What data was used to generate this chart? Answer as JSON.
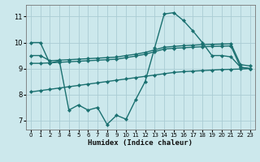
{
  "xlabel": "Humidex (Indice chaleur)",
  "background_color": "#cce8ec",
  "grid_color": "#aaccd4",
  "line_color": "#1a7070",
  "xlim": [
    -0.5,
    23.5
  ],
  "ylim": [
    6.65,
    11.45
  ],
  "xticks": [
    0,
    1,
    2,
    3,
    4,
    5,
    6,
    7,
    8,
    9,
    10,
    11,
    12,
    13,
    14,
    15,
    16,
    17,
    18,
    19,
    20,
    21,
    22,
    23
  ],
  "yticks": [
    7,
    8,
    9,
    10,
    11
  ],
  "lines": [
    {
      "x": [
        0,
        1,
        2,
        3,
        4,
        5,
        6,
        7,
        8,
        9,
        10,
        11,
        12,
        13,
        14,
        15,
        16,
        17,
        18,
        19,
        20,
        21,
        22,
        23
      ],
      "y": [
        10.0,
        10.0,
        9.2,
        9.3,
        7.4,
        7.6,
        7.4,
        7.5,
        6.85,
        7.2,
        7.05,
        7.8,
        8.5,
        9.8,
        11.1,
        11.15,
        10.85,
        10.45,
        10.0,
        9.5,
        9.5,
        9.45,
        9.05,
        9.0
      ],
      "lw": 1.0
    },
    {
      "x": [
        0,
        1,
        2,
        3,
        4,
        5,
        6,
        7,
        8,
        9,
        10,
        11,
        12,
        13,
        14,
        15,
        16,
        17,
        18,
        19,
        20,
        21,
        22,
        23
      ],
      "y": [
        9.5,
        9.5,
        9.3,
        9.32,
        9.34,
        9.36,
        9.38,
        9.4,
        9.42,
        9.44,
        9.5,
        9.55,
        9.62,
        9.72,
        9.82,
        9.85,
        9.88,
        9.9,
        9.92,
        9.93,
        9.94,
        9.95,
        9.15,
        9.1
      ],
      "lw": 1.0
    },
    {
      "x": [
        0,
        1,
        2,
        3,
        4,
        5,
        6,
        7,
        8,
        9,
        10,
        11,
        12,
        13,
        14,
        15,
        16,
        17,
        18,
        19,
        20,
        21,
        22,
        23
      ],
      "y": [
        9.2,
        9.2,
        9.22,
        9.24,
        9.26,
        9.28,
        9.3,
        9.32,
        9.34,
        9.36,
        9.42,
        9.48,
        9.55,
        9.65,
        9.75,
        9.78,
        9.8,
        9.82,
        9.84,
        9.85,
        9.86,
        9.87,
        9.05,
        9.0
      ],
      "lw": 1.0
    },
    {
      "x": [
        0,
        1,
        2,
        3,
        4,
        5,
        6,
        7,
        8,
        9,
        10,
        11,
        12,
        13,
        14,
        15,
        16,
        17,
        18,
        19,
        20,
        21,
        22,
        23
      ],
      "y": [
        8.1,
        8.15,
        8.2,
        8.25,
        8.3,
        8.35,
        8.4,
        8.45,
        8.5,
        8.55,
        8.6,
        8.65,
        8.7,
        8.75,
        8.8,
        8.85,
        8.88,
        8.9,
        8.92,
        8.94,
        8.96,
        8.97,
        8.98,
        9.0
      ],
      "lw": 1.0
    }
  ]
}
